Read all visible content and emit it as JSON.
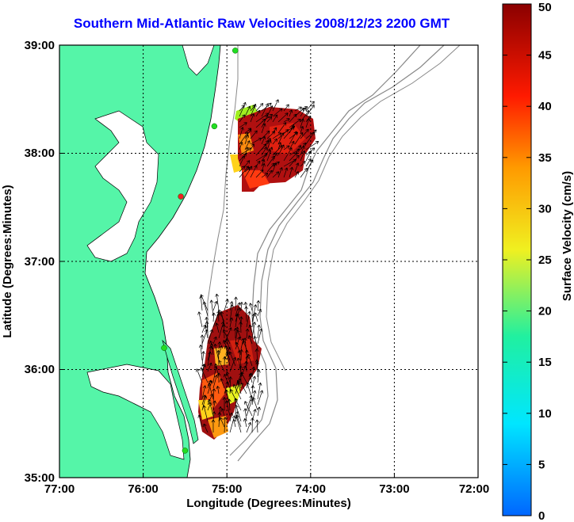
{
  "title": "Southern Mid-Atlantic Raw Velocities 2008/12/23 2200 GMT",
  "axes": {
    "xlabel": "Longitude (Degrees:Minutes)",
    "ylabel": "Latitude (Degrees:Minutes)",
    "xticks": [
      "77:00",
      "76:00",
      "75:00",
      "74:00",
      "73:00",
      "72:00"
    ],
    "yticks": [
      "39:00",
      "38:00",
      "37:00",
      "36:00",
      "35:00"
    ]
  },
  "colorbar": {
    "label": "Surface Velocity (cm/s)",
    "ticks": [
      "50",
      "45",
      "40",
      "35",
      "30",
      "25",
      "20",
      "15",
      "10",
      "5",
      "0"
    ]
  },
  "colors": {
    "land": "#55f5a8",
    "title": "#0000ff",
    "site_active": "#22dd22",
    "site_inactive": "#ee2222"
  },
  "map_extent": {
    "lon": [
      -77,
      -72
    ],
    "lat": [
      35,
      39
    ]
  },
  "radar_sites": [
    {
      "lon": -74.9,
      "lat": 38.95,
      "status": "active"
    },
    {
      "lon": -75.15,
      "lat": 38.25,
      "status": "active"
    },
    {
      "lon": -75.55,
      "lat": 37.6,
      "status": "inactive"
    },
    {
      "lon": -75.75,
      "lat": 36.2,
      "status": "active"
    },
    {
      "lon": -75.5,
      "lat": 35.25,
      "status": "active"
    }
  ]
}
